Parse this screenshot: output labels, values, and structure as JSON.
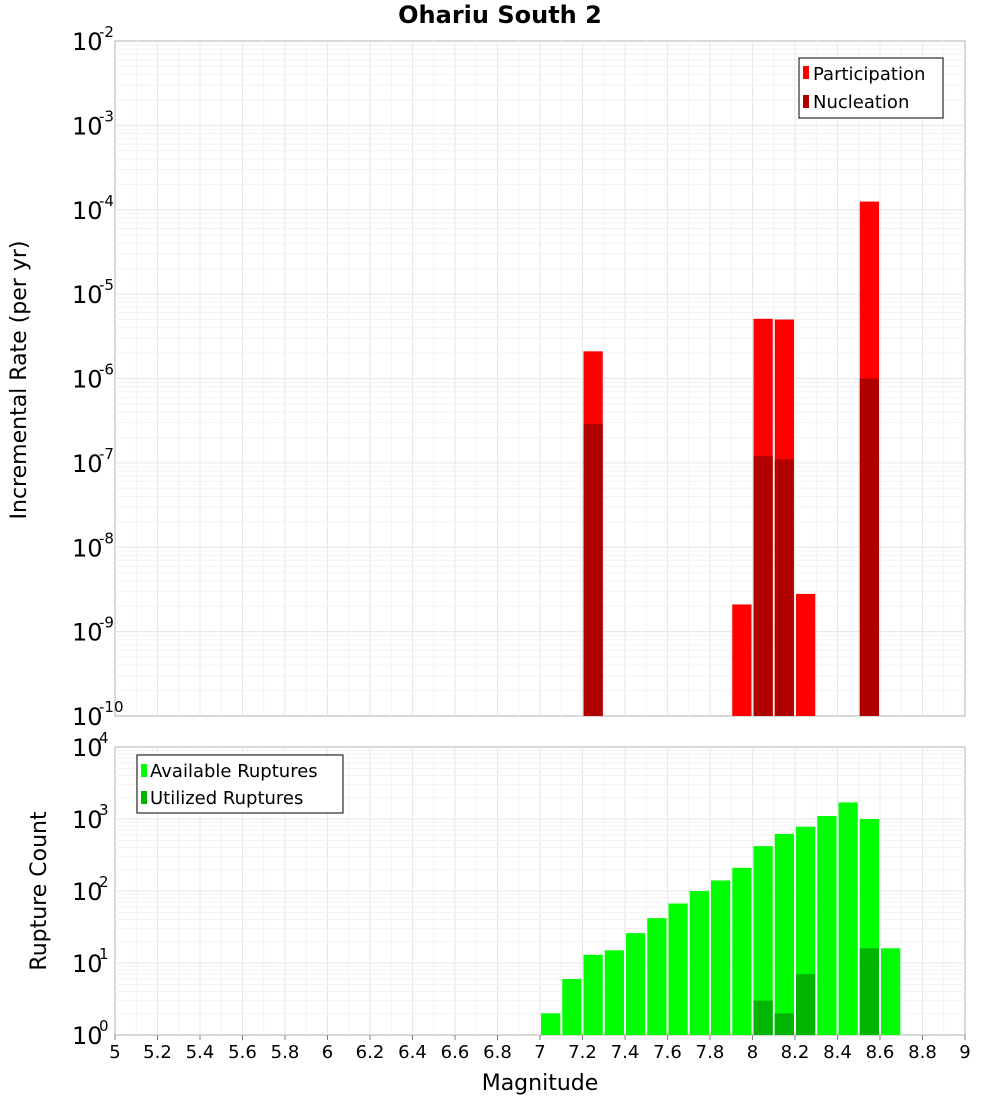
{
  "chart_data": [
    {
      "type": "bar",
      "title": "Ohariu South 2",
      "xlabel": "",
      "ylabel": "Incremental Rate (per yr)",
      "yscale": "log",
      "xlim": [
        5,
        9
      ],
      "ylim_exp": [
        -10,
        -2
      ],
      "y_tick_exponents": [
        "-10",
        "-9",
        "-8",
        "-7",
        "-6",
        "-5",
        "-4",
        "-3",
        "-2"
      ],
      "bin_width": 0.1,
      "legend": [
        "Participation",
        "Nucleation"
      ],
      "legend_position": "top-right",
      "colors": {
        "participation": "#ff0000",
        "nucleation": "#b00000"
      },
      "series": [
        {
          "name": "Participation",
          "x": [
            7.25,
            7.95,
            8.05,
            8.15,
            8.25,
            8.55
          ],
          "values": [
            2.1e-06,
            2.1e-09,
            5.1e-06,
            5e-06,
            2.8e-09,
            0.000125
          ]
        },
        {
          "name": "Nucleation",
          "x": [
            7.25,
            8.05,
            8.15,
            8.55
          ],
          "values": [
            2.9e-07,
            1.2e-07,
            1.1e-07,
            1e-06
          ]
        }
      ]
    },
    {
      "type": "bar",
      "title": "",
      "xlabel": "Magnitude",
      "ylabel": "Rupture Count",
      "yscale": "log",
      "xlim": [
        5,
        9
      ],
      "ylim_exp": [
        0,
        4
      ],
      "y_tick_exponents": [
        "0",
        "1",
        "2",
        "3",
        "4"
      ],
      "x_ticks": [
        "5",
        "5.2",
        "5.4",
        "5.6",
        "5.8",
        "6",
        "6.2",
        "6.4",
        "6.6",
        "6.8",
        "7",
        "7.2",
        "7.4",
        "7.6",
        "7.8",
        "8",
        "8.2",
        "8.4",
        "8.6",
        "8.8",
        "9"
      ],
      "bin_width": 0.1,
      "legend": [
        "Available Ruptures",
        "Utilized Ruptures"
      ],
      "legend_position": "top-left",
      "colors": {
        "available": "#00ff00",
        "utilized": "#00b400"
      },
      "series": [
        {
          "name": "Available Ruptures",
          "x": [
            6.45,
            6.75,
            6.85,
            6.95,
            7.05,
            7.15,
            7.25,
            7.35,
            7.45,
            7.55,
            7.65,
            7.75,
            7.85,
            7.95,
            8.05,
            8.15,
            8.25,
            8.35,
            8.45,
            8.55,
            8.65
          ],
          "values": [
            1,
            1,
            1,
            1,
            2,
            6,
            13,
            15,
            26,
            42,
            67,
            100,
            140,
            210,
            420,
            620,
            780,
            1100,
            1700,
            1000,
            16
          ]
        },
        {
          "name": "Utilized Ruptures",
          "x": [
            7.25,
            7.95,
            8.05,
            8.15,
            8.25,
            8.55
          ],
          "values": [
            1,
            1,
            3,
            2,
            7,
            16
          ]
        }
      ]
    }
  ]
}
